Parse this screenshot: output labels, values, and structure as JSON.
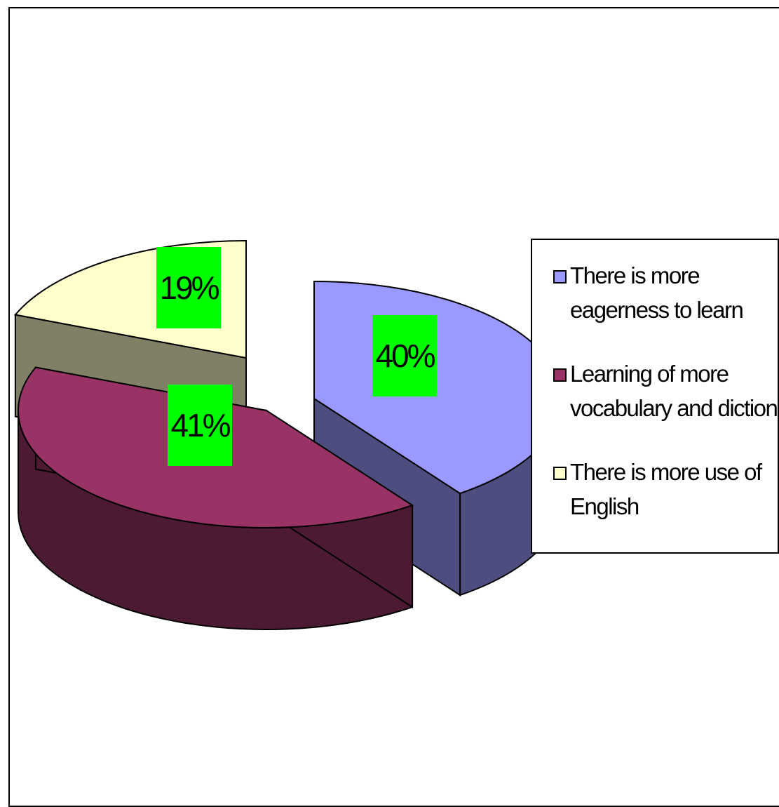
{
  "chart_data": {
    "type": "pie",
    "style": "3d-exploded",
    "title": "",
    "slices": [
      {
        "label": "There is more eagerness to learn",
        "value": 40,
        "data_label": "40%",
        "color": "#9999FF",
        "side_color": "#4D4D80"
      },
      {
        "label": "Learning of more vocabulary and diction",
        "value": 41,
        "data_label": "41%",
        "color": "#993366",
        "side_color": "#4D1A33"
      },
      {
        "label": "There is more use of English",
        "value": 19,
        "data_label": "19%",
        "color": "#FFFFCC",
        "side_color": "#808066"
      }
    ],
    "data_label_background": "#00FF00",
    "legend": {
      "position": "right",
      "items": [
        {
          "label": "There is more eagerness to learn",
          "color": "#9999FF"
        },
        {
          "label": "Learning of more vocabulary and diction",
          "color": "#993366"
        },
        {
          "label": "There is more use of English",
          "color": "#FFFFCC"
        }
      ]
    }
  }
}
